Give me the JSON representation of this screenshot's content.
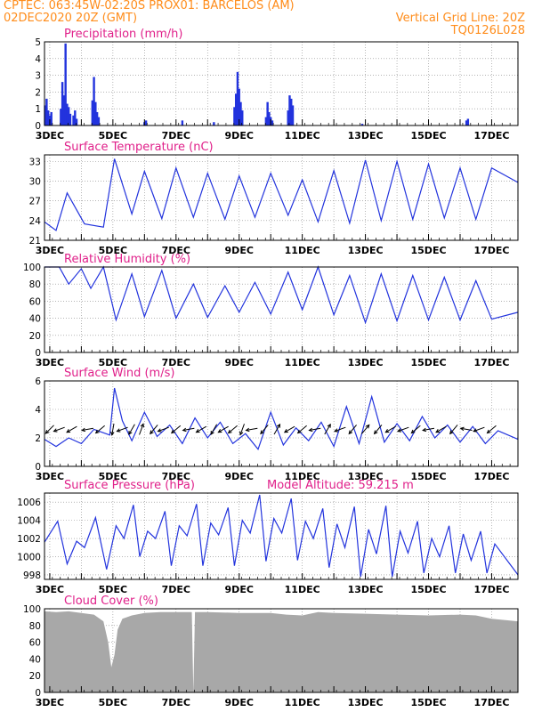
{
  "header": {
    "line1_left": "CPTEC:   063:45W-02:20S   PROX01: BARCELOS (AM)",
    "line2_left": "02DEC2020 20Z (GMT)",
    "line2_right": "Vertical Grid Line: 20Z",
    "line3_right": "TQ0126L028"
  },
  "colors": {
    "header": "#ff8c1a",
    "title": "#e0208a",
    "line": "#2233dd",
    "bars": "#2233dd",
    "cloud": "#a8a8a8",
    "grid": "#888888"
  },
  "x_axis": {
    "tick_labels": [
      "3DEC",
      "5DEC",
      "7DEC",
      "9DEC",
      "11DEC",
      "13DEC",
      "15DEC",
      "17DEC"
    ],
    "range_days": [
      2.833,
      17.833
    ]
  },
  "chart_data": [
    {
      "type": "bar",
      "title": "Precipitation (mm/h)",
      "ylim": [
        0,
        5
      ],
      "yticks": [
        0,
        1,
        2,
        3,
        4,
        5
      ],
      "x": [
        2.85,
        2.9,
        2.95,
        3.0,
        3.05,
        3.35,
        3.4,
        3.45,
        3.5,
        3.55,
        3.6,
        3.65,
        3.75,
        3.8,
        3.85,
        4.35,
        4.4,
        4.45,
        4.5,
        4.55,
        6.0,
        6.05,
        7.2,
        8.2,
        8.85,
        8.9,
        8.95,
        9.0,
        9.05,
        9.1,
        9.85,
        9.9,
        9.95,
        10.0,
        10.05,
        10.55,
        10.6,
        10.65,
        10.7,
        12.9,
        16.2,
        16.25
      ],
      "values": [
        1.2,
        1.6,
        0.9,
        0.6,
        0.8,
        1.0,
        2.6,
        1.8,
        4.9,
        1.3,
        1.1,
        0.7,
        0.6,
        0.9,
        0.4,
        1.5,
        2.9,
        1.4,
        0.8,
        0.5,
        0.2,
        0.3,
        0.3,
        0.2,
        1.1,
        1.9,
        3.2,
        2.2,
        1.4,
        0.9,
        0.5,
        1.4,
        0.8,
        0.5,
        0.3,
        0.9,
        1.8,
        1.6,
        1.2,
        0.1,
        0.3,
        0.4
      ]
    },
    {
      "type": "line",
      "title": "Surface Temperature (nC)",
      "ylim": [
        21,
        34
      ],
      "yticks": [
        21,
        24,
        27,
        30,
        33
      ],
      "x": [
        2.833,
        3.2,
        3.55,
        4.1,
        4.7,
        5.05,
        5.6,
        6.0,
        6.55,
        7.0,
        7.55,
        8.0,
        8.55,
        9.0,
        9.5,
        10.0,
        10.55,
        11.0,
        11.5,
        12.0,
        12.5,
        13.0,
        13.5,
        14.0,
        14.5,
        15.0,
        15.5,
        16.0,
        16.5,
        17.0,
        17.833
      ],
      "values": [
        23.8,
        22.5,
        28.2,
        23.5,
        23.0,
        33.4,
        25.0,
        31.5,
        24.3,
        32.0,
        24.5,
        31.2,
        24.2,
        30.8,
        24.5,
        31.2,
        24.8,
        30.2,
        23.8,
        31.6,
        23.6,
        33.2,
        24.0,
        33.0,
        24.2,
        32.6,
        24.4,
        32.0,
        24.2,
        32.0,
        29.8
      ]
    },
    {
      "type": "line",
      "title": "Relative Humidity (%)",
      "ylim": [
        0,
        100
      ],
      "yticks": [
        0,
        20,
        40,
        60,
        80,
        100
      ],
      "x": [
        2.833,
        3.3,
        3.6,
        4.0,
        4.3,
        4.7,
        5.1,
        5.6,
        6.0,
        6.55,
        7.0,
        7.55,
        8.0,
        8.55,
        9.0,
        9.5,
        10.0,
        10.55,
        11.0,
        11.5,
        12.0,
        12.5,
        13.0,
        13.5,
        14.0,
        14.5,
        15.0,
        15.5,
        16.0,
        16.5,
        17.0,
        17.833
      ],
      "values": [
        100,
        100,
        80,
        98,
        75,
        100,
        38,
        92,
        42,
        96,
        40,
        80,
        41,
        78,
        47,
        82,
        45,
        94,
        50,
        100,
        44,
        90,
        35,
        92,
        37,
        90,
        38,
        88,
        38,
        84,
        39,
        47
      ]
    },
    {
      "type": "line",
      "title": "Surface Wind (m/s)",
      "ylim": [
        0,
        6
      ],
      "yticks": [
        0,
        2,
        4,
        6
      ],
      "x": [
        2.833,
        3.2,
        3.6,
        4.0,
        4.4,
        4.9,
        5.05,
        5.3,
        5.6,
        6.0,
        6.4,
        6.8,
        7.2,
        7.6,
        8.0,
        8.4,
        8.8,
        9.2,
        9.6,
        10.0,
        10.4,
        10.8,
        11.2,
        11.6,
        12.0,
        12.4,
        12.8,
        13.2,
        13.6,
        14.0,
        14.4,
        14.8,
        15.2,
        15.6,
        16.0,
        16.4,
        16.8,
        17.2,
        17.833
      ],
      "values": [
        1.9,
        1.4,
        2.0,
        1.6,
        2.6,
        2.2,
        5.5,
        3.2,
        1.8,
        3.8,
        2.1,
        2.9,
        1.6,
        3.4,
        2.0,
        3.1,
        1.6,
        2.3,
        1.2,
        3.8,
        1.5,
        2.7,
        1.8,
        3.1,
        1.4,
        4.2,
        1.6,
        4.9,
        1.7,
        3.0,
        1.8,
        3.5,
        2.0,
        2.9,
        1.7,
        2.8,
        1.6,
        2.5,
        1.9
      ]
    },
    {
      "type": "line",
      "title": "Surface Pressure (hPa)",
      "annotation": "Model Altitude: 59.215 m",
      "ylim": [
        997.5,
        1007
      ],
      "yticks": [
        998,
        1000,
        1002,
        1004,
        1006
      ],
      "x": [
        2.833,
        3.25,
        3.55,
        3.85,
        4.1,
        4.45,
        4.8,
        5.1,
        5.35,
        5.65,
        5.85,
        6.1,
        6.35,
        6.65,
        6.85,
        7.1,
        7.35,
        7.65,
        7.85,
        8.1,
        8.35,
        8.65,
        8.85,
        9.1,
        9.35,
        9.65,
        9.85,
        10.1,
        10.35,
        10.65,
        10.85,
        11.1,
        11.35,
        11.65,
        11.85,
        12.1,
        12.35,
        12.65,
        12.85,
        13.1,
        13.35,
        13.65,
        13.85,
        14.1,
        14.35,
        14.65,
        14.85,
        15.1,
        15.35,
        15.65,
        15.85,
        16.1,
        16.35,
        16.65,
        16.85,
        17.1,
        17.833
      ],
      "values": [
        1001.6,
        1003.9,
        999.2,
        1001.7,
        1001.0,
        1004.3,
        998.6,
        1003.4,
        1002.0,
        1005.7,
        1000.0,
        1002.8,
        1002.0,
        1005.0,
        999.0,
        1003.4,
        1002.3,
        1005.8,
        999.0,
        1003.7,
        1002.4,
        1005.4,
        999.0,
        1004.0,
        1002.6,
        1006.8,
        999.5,
        1004.2,
        1002.6,
        1006.4,
        999.6,
        1003.9,
        1002.0,
        1005.3,
        998.8,
        1003.6,
        1001.0,
        1005.5,
        997.8,
        1003.0,
        1000.3,
        1005.6,
        997.8,
        1002.8,
        1000.4,
        1003.9,
        998.2,
        1002.0,
        1000.0,
        1003.4,
        998.2,
        1002.5,
        999.6,
        1002.8,
        998.2,
        1001.4,
        998.0
      ]
    },
    {
      "type": "area",
      "title": "Cloud Cover (%)",
      "ylim": [
        0,
        100
      ],
      "yticks": [
        0,
        20,
        40,
        60,
        80,
        100
      ],
      "x": [
        2.833,
        3.2,
        3.6,
        4.0,
        4.4,
        4.7,
        4.85,
        4.95,
        5.05,
        5.15,
        5.3,
        5.6,
        6.0,
        6.5,
        7.0,
        7.5,
        7.55,
        7.6,
        8.0,
        9.0,
        10.0,
        10.5,
        11.0,
        11.5,
        12.0,
        13.0,
        14.0,
        15.0,
        16.0,
        16.5,
        17.0,
        17.833
      ],
      "values": [
        97,
        96,
        97,
        95,
        93,
        85,
        60,
        30,
        45,
        75,
        88,
        92,
        95,
        96,
        96,
        96,
        0,
        96,
        96,
        95,
        95,
        93,
        92,
        96,
        95,
        94,
        93,
        92,
        93,
        92,
        88,
        85
      ]
    }
  ],
  "wind_arrows": {
    "x": [
      3.0,
      3.3,
      3.7,
      4.2,
      4.6,
      5.0,
      5.3,
      5.6,
      5.9,
      6.3,
      6.6,
      7.0,
      7.4,
      7.8,
      8.2,
      8.5,
      8.8,
      9.1,
      9.4,
      9.8,
      10.2,
      10.6,
      11.0,
      11.4,
      11.8,
      12.2,
      12.6,
      13.0,
      13.4,
      13.8,
      14.2,
      14.6,
      15.0,
      15.4,
      15.8,
      16.2,
      16.6,
      17.0
    ],
    "dir_deg": [
      225,
      200,
      210,
      190,
      220,
      260,
      200,
      240,
      70,
      230,
      200,
      220,
      190,
      210,
      240,
      210,
      220,
      250,
      190,
      230,
      60,
      210,
      220,
      190,
      60,
      200,
      230,
      50,
      230,
      210,
      200,
      220,
      190,
      210,
      230,
      170,
      200,
      220
    ]
  }
}
